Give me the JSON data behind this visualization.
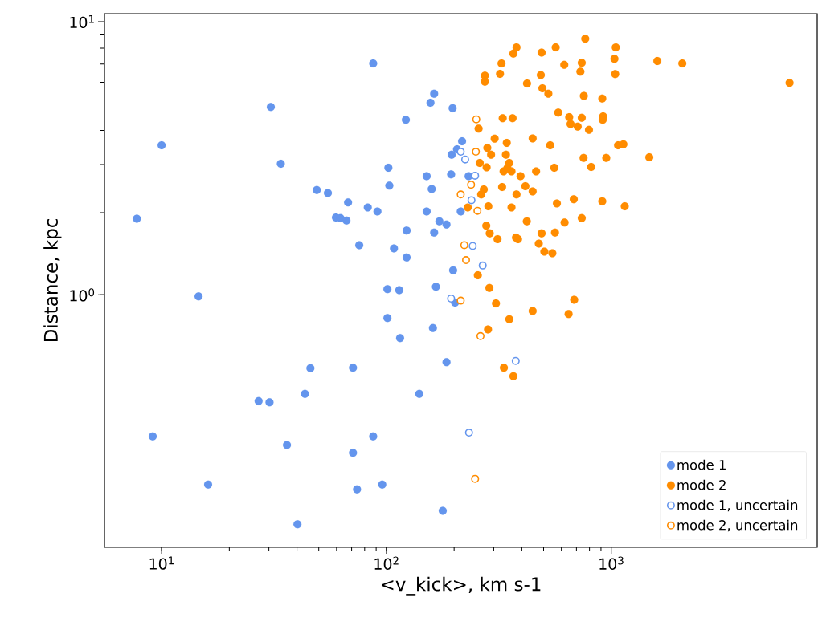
{
  "chart_data": {
    "type": "scatter",
    "xlabel": "<v_kick>, km s-1",
    "ylabel": "Distance, kpc",
    "log": "xy",
    "xlim": [
      5.57,
      8240
    ],
    "ylim": [
      0.119,
      10.7
    ],
    "xticks": [
      {
        "value": 10,
        "label": "10$^{1}$"
      },
      {
        "value": 100,
        "label": "10$^{2}$"
      },
      {
        "value": 1000,
        "label": "10$^{3}$"
      }
    ],
    "yticks": [
      {
        "value": 1,
        "label": "10$^{0}$"
      },
      {
        "value": 10,
        "label": "10$^{1}$"
      }
    ],
    "legend": "bottom right",
    "marker": "circle",
    "series": [
      {
        "name": "mode 1",
        "color": "#6495ed",
        "x": [
          30.6,
          10,
          33.9,
          49.0,
          54.9,
          67.5,
          82.6,
          59.6,
          62.4,
          66.4,
          75.7,
          7.76,
          87.3,
          14.6,
          9.13,
          27.0,
          30.2,
          45.9,
          43.4,
          71.0,
          36.1,
          71.0,
          16.1,
          74.0,
          40.2,
          87.3,
          101,
          114,
          166,
          202,
          101,
          161,
          115,
          185,
          140,
          95.8,
          178,
          163,
          157,
          197,
          122,
          217,
          206,
          195,
          102,
          103,
          151,
          194,
          232,
          159,
          91.2,
          151,
          214,
          172,
          185,
          123,
          163,
          108,
          123,
          198
        ],
        "values": [
          4.87,
          3.53,
          3.02,
          2.42,
          2.36,
          2.18,
          2.09,
          1.92,
          1.91,
          1.87,
          1.52,
          1.9,
          7.03,
          0.987,
          0.303,
          0.408,
          0.404,
          0.539,
          0.434,
          0.541,
          0.282,
          0.264,
          0.202,
          0.194,
          0.1445,
          0.303,
          1.05,
          1.04,
          1.07,
          0.936,
          0.823,
          0.756,
          0.695,
          0.567,
          0.434,
          0.202,
          0.162,
          5.45,
          5.05,
          4.82,
          4.37,
          3.65,
          3.41,
          3.26,
          2.92,
          2.51,
          2.72,
          2.76,
          2.72,
          2.44,
          2.02,
          2.02,
          2.02,
          1.86,
          1.81,
          1.72,
          1.69,
          1.48,
          1.37,
          1.23
        ]
      },
      {
        "name": "mode 2",
        "color": "#ff8c00",
        "x": [
          255,
          287,
          307,
          352,
          447,
          283,
          333,
          367,
          684,
          646,
          766,
          379,
          367,
          566,
          490,
          1047,
          1033,
          325,
          618,
          739,
          729,
          1041,
          274,
          274,
          320,
          486,
          422,
          494,
          525,
          755,
          912,
          581,
          329,
          364,
          650,
          659,
          709,
          739,
          920,
          916,
          796,
          257,
          303,
          343,
          447,
          535,
          1072,
          1132,
          281,
          292,
          340,
          753,
          950,
          814,
          558,
          463,
          260,
          279,
          352,
          332,
          360,
          345,
          395,
          327,
          415,
          447,
          271,
          264,
          379,
          284,
          360,
          573,
          681,
          912,
          1148,
          230,
          421,
          620,
          739,
          278,
          288,
          312,
          377,
          385,
          490,
          562,
          476,
          504,
          547,
          1603,
          2070,
          6210,
          1476
        ],
        "values": [
          1.18,
          1.06,
          0.93,
          0.814,
          0.872,
          0.747,
          0.541,
          0.504,
          0.96,
          0.85,
          8.66,
          8.05,
          7.64,
          8.05,
          7.71,
          8.05,
          7.31,
          7.03,
          6.95,
          7.07,
          6.56,
          6.43,
          6.35,
          6.03,
          6.44,
          6.38,
          5.94,
          5.7,
          5.45,
          5.35,
          5.23,
          4.65,
          4.43,
          4.43,
          4.47,
          4.22,
          4.13,
          4.45,
          4.5,
          4.37,
          4.02,
          4.06,
          3.73,
          3.6,
          3.74,
          3.53,
          3.53,
          3.56,
          3.45,
          3.26,
          3.26,
          3.17,
          3.17,
          2.94,
          2.92,
          2.83,
          3.04,
          2.93,
          3.04,
          2.83,
          2.83,
          2.91,
          2.72,
          2.48,
          2.5,
          2.39,
          2.43,
          2.33,
          2.33,
          2.11,
          2.09,
          2.16,
          2.24,
          2.2,
          2.11,
          2.09,
          1.86,
          1.84,
          1.91,
          1.79,
          1.68,
          1.6,
          1.62,
          1.6,
          1.68,
          1.69,
          1.54,
          1.44,
          1.42,
          7.18,
          7.03,
          5.97,
          3.19
        ]
      },
      {
        "name": "mode 1, uncertain",
        "color": "#6495ed",
        "marker": "open circle",
        "x": [
          194,
          376,
          233,
          214,
          224,
          248,
          239,
          242,
          268
        ],
        "values": [
          0.969,
          0.573,
          0.313,
          3.34,
          3.13,
          2.73,
          2.22,
          1.51,
          1.28
        ]
      },
      {
        "name": "mode 2, uncertain",
        "color": "#ff8c00",
        "marker": "open circle",
        "x": [
          214,
          262,
          248,
          251,
          250,
          238,
          214,
          254,
          222,
          226
        ],
        "values": [
          0.952,
          0.706,
          0.212,
          4.39,
          3.34,
          2.53,
          2.33,
          2.03,
          1.52,
          1.34
        ]
      }
    ]
  }
}
